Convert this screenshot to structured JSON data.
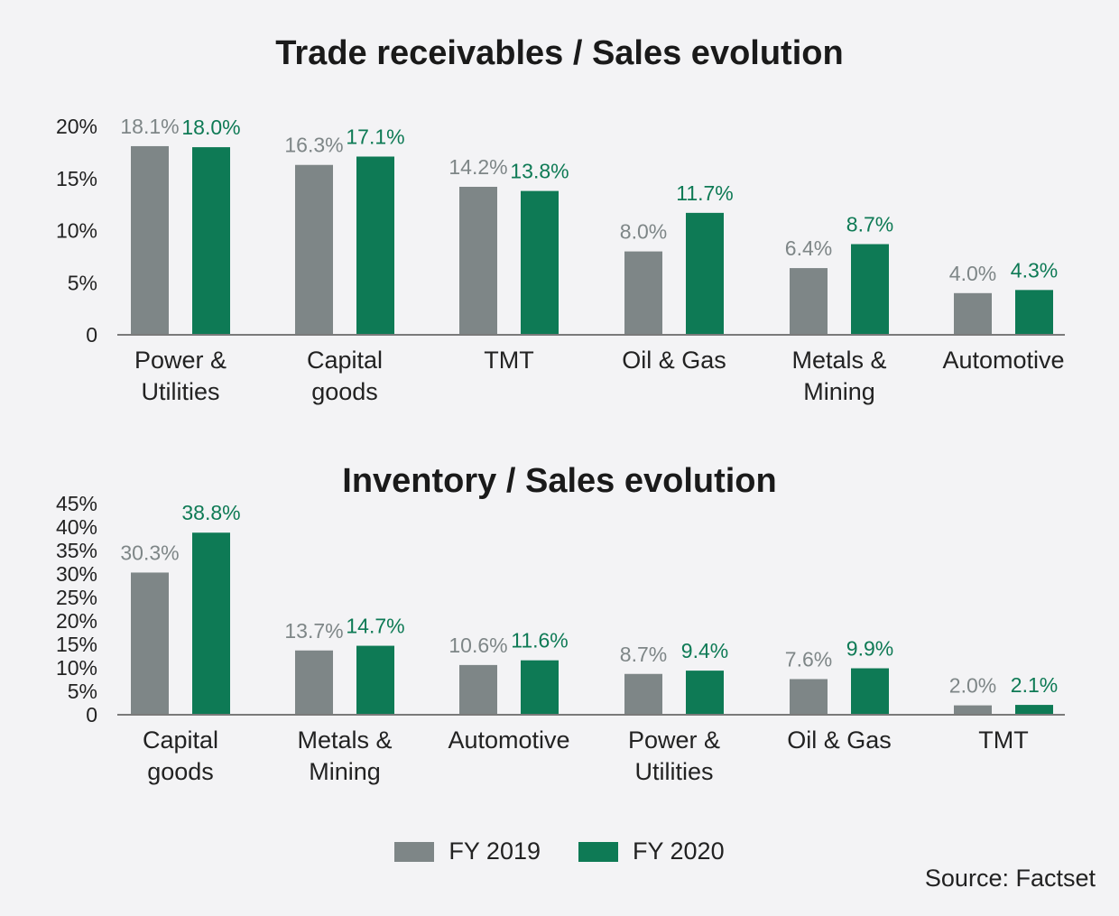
{
  "colors": {
    "fy2019": "#7e8687",
    "fy2020": "#0e7a55",
    "axis": "#7a7a7a",
    "background": "#f3f3f5"
  },
  "legend": {
    "items": [
      "FY 2019",
      "FY 2020"
    ]
  },
  "source": "Source: Factset",
  "chart_data": [
    {
      "type": "bar",
      "title": "Trade receivables / Sales evolution",
      "xlabel": "",
      "ylabel": "",
      "categories": [
        [
          "Power &",
          "Utilities"
        ],
        [
          "Capital",
          "goods"
        ],
        [
          "TMT"
        ],
        [
          "Oil & Gas"
        ],
        [
          "Metals &",
          "Mining"
        ],
        [
          "Automotive"
        ]
      ],
      "series": [
        {
          "name": "FY 2019",
          "values": [
            18.1,
            16.3,
            14.2,
            8.0,
            6.4,
            4.0
          ],
          "labels": [
            "18.1%",
            "16.3%",
            "14.2%",
            "8.0%",
            "6.4%",
            "4.0%"
          ]
        },
        {
          "name": "FY 2020",
          "values": [
            18.0,
            17.1,
            13.8,
            11.7,
            8.7,
            4.3
          ],
          "labels": [
            "18.0%",
            "17.1%",
            "13.8%",
            "11.7%",
            "8.7%",
            "4.3%"
          ]
        }
      ],
      "ylim": [
        0,
        20
      ],
      "yticks": [
        0,
        5,
        10,
        15,
        20
      ],
      "yticklabels": [
        "0",
        "5%",
        "10%",
        "15%",
        "20%"
      ],
      "grid": false
    },
    {
      "type": "bar",
      "title": "Inventory / Sales evolution",
      "xlabel": "",
      "ylabel": "",
      "categories": [
        [
          "Capital",
          "goods"
        ],
        [
          "Metals &",
          "Mining"
        ],
        [
          "Automotive"
        ],
        [
          "Power &",
          "Utilities"
        ],
        [
          "Oil & Gas"
        ],
        [
          "TMT"
        ]
      ],
      "series": [
        {
          "name": "FY 2019",
          "values": [
            30.3,
            13.7,
            10.6,
            8.7,
            7.6,
            2.0
          ],
          "labels": [
            "30.3%",
            "13.7%",
            "10.6%",
            "8.7%",
            "7.6%",
            "2.0%"
          ]
        },
        {
          "name": "FY 2020",
          "values": [
            38.8,
            14.7,
            11.6,
            9.4,
            9.9,
            2.1
          ],
          "labels": [
            "38.8%",
            "14.7%",
            "11.6%",
            "9.4%",
            "9.9%",
            "2.1%"
          ]
        }
      ],
      "ylim": [
        0,
        45
      ],
      "yticks": [
        0,
        5,
        10,
        15,
        20,
        25,
        30,
        35,
        40,
        45
      ],
      "yticklabels": [
        "0",
        "5%",
        "10%",
        "15%",
        "20%",
        "25%",
        "30%",
        "35%",
        "40%",
        "45%"
      ],
      "grid": false
    }
  ]
}
